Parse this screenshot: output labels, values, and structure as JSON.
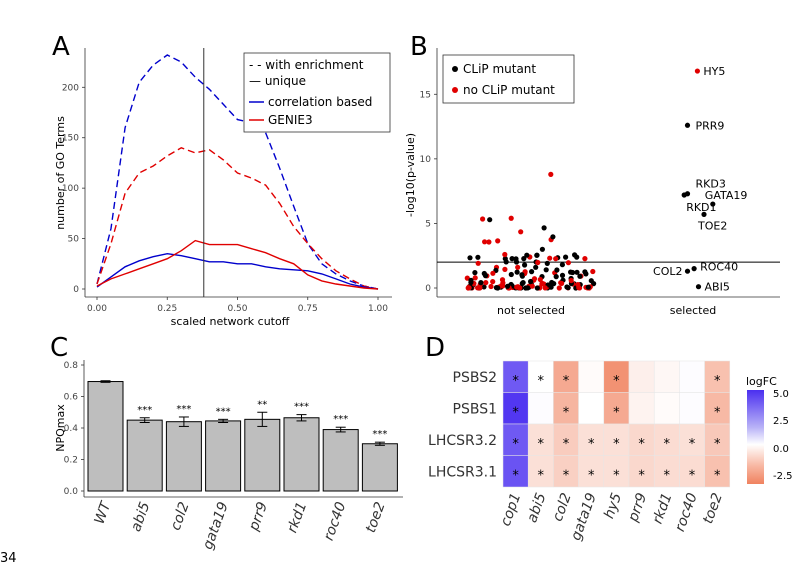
{
  "page_footer": "34",
  "chart_data": [
    {
      "panel": "A",
      "type": "line",
      "xlabel": "scaled network cutoff",
      "ylabel": "number of GO Terms",
      "xlim": [
        0,
        1
      ],
      "ylim": [
        0,
        235
      ],
      "xticks": [
        "0.00",
        "0.25",
        "0.50",
        "0.75",
        "1.00"
      ],
      "yticks": [
        "0",
        "50",
        "100",
        "150",
        "200"
      ],
      "vline_x": 0.38,
      "legend": {
        "with_enrichment": "- - with enrichment",
        "unique": "— unique",
        "correlation": "correlation based",
        "genie": "GENIE3"
      },
      "series": [
        {
          "name": "correlation based, with enrichment",
          "color": "#0000cc",
          "style": "dashed",
          "x": [
            0.0,
            0.05,
            0.1,
            0.15,
            0.2,
            0.25,
            0.3,
            0.35,
            0.4,
            0.45,
            0.5,
            0.55,
            0.6,
            0.65,
            0.7,
            0.75,
            0.8,
            0.85,
            0.9,
            0.95,
            1.0
          ],
          "y": [
            5,
            60,
            160,
            205,
            222,
            232,
            225,
            210,
            198,
            183,
            168,
            165,
            155,
            120,
            82,
            45,
            25,
            15,
            8,
            3,
            0
          ]
        },
        {
          "name": "GENIE3, with enrichment",
          "color": "#e00000",
          "style": "dashed",
          "x": [
            0.0,
            0.05,
            0.1,
            0.15,
            0.2,
            0.25,
            0.3,
            0.35,
            0.4,
            0.45,
            0.5,
            0.55,
            0.6,
            0.65,
            0.7,
            0.75,
            0.8,
            0.85,
            0.9,
            0.95,
            1.0
          ],
          "y": [
            5,
            45,
            95,
            115,
            122,
            132,
            140,
            135,
            138,
            128,
            115,
            110,
            103,
            85,
            62,
            45,
            30,
            18,
            10,
            3,
            0
          ]
        },
        {
          "name": "correlation based, unique",
          "color": "#0000cc",
          "style": "solid",
          "x": [
            0.0,
            0.05,
            0.1,
            0.15,
            0.2,
            0.25,
            0.3,
            0.35,
            0.4,
            0.45,
            0.5,
            0.55,
            0.6,
            0.65,
            0.7,
            0.75,
            0.8,
            0.85,
            0.9,
            0.95,
            1.0
          ],
          "y": [
            2,
            12,
            22,
            28,
            32,
            35,
            33,
            30,
            27,
            27,
            25,
            25,
            22,
            20,
            19,
            18,
            15,
            10,
            5,
            2,
            0
          ]
        },
        {
          "name": "GENIE3, unique",
          "color": "#e00000",
          "style": "solid",
          "x": [
            0.0,
            0.05,
            0.1,
            0.15,
            0.2,
            0.25,
            0.3,
            0.35,
            0.4,
            0.45,
            0.5,
            0.55,
            0.6,
            0.65,
            0.7,
            0.75,
            0.8,
            0.85,
            0.9,
            0.95,
            1.0
          ],
          "y": [
            3,
            10,
            15,
            20,
            25,
            30,
            38,
            48,
            44,
            44,
            44,
            40,
            36,
            30,
            25,
            14,
            8,
            5,
            3,
            1,
            0
          ]
        }
      ]
    },
    {
      "panel": "B",
      "type": "scatter",
      "ylabel": "-log10(p-value)",
      "categories": [
        "not selected",
        "selected"
      ],
      "ylim": [
        0,
        17.5
      ],
      "yticks": [
        "0",
        "5",
        "10",
        "15"
      ],
      "hline_y": 2,
      "legend": {
        "clip": "CLiP mutant",
        "noclip": "no CLiP mutant"
      },
      "labeled_points": [
        {
          "label": "HY5",
          "x": 0.08,
          "y": 16.8,
          "clip": false
        },
        {
          "label": "PRR9",
          "x": -0.1,
          "y": 12.6,
          "clip": true
        },
        {
          "label": "RKD3",
          "x": -0.1,
          "y": 7.3,
          "clip": true
        },
        {
          "label": "RKD1",
          "x": -0.16,
          "y": 7.2,
          "clip": true
        },
        {
          "label": "GATA19",
          "x": 0.36,
          "y": 6.5,
          "clip": true
        },
        {
          "label": "TOE2",
          "x": 0.2,
          "y": 5.7,
          "clip": true
        },
        {
          "label": "ROC40",
          "x": 0.02,
          "y": 1.5,
          "clip": true
        },
        {
          "label": "COL2",
          "x": -0.1,
          "y": 1.3,
          "clip": true
        },
        {
          "label": "ABI5",
          "x": 0.1,
          "y": 0.1,
          "clip": true
        }
      ]
    },
    {
      "panel": "C",
      "type": "bar",
      "ylabel": "NPQmax",
      "ylim": [
        0,
        0.8
      ],
      "yticks": [
        "0.0",
        "0.2",
        "0.4",
        "0.6",
        "0.8"
      ],
      "categories": [
        "WT",
        "abi5",
        "col2",
        "gata19",
        "prr9",
        "rkd1",
        "roc40",
        "toe2"
      ],
      "values": [
        0.695,
        0.45,
        0.44,
        0.445,
        0.455,
        0.465,
        0.39,
        0.3
      ],
      "errors": [
        0.005,
        0.015,
        0.03,
        0.01,
        0.045,
        0.02,
        0.015,
        0.01
      ],
      "significance": [
        "",
        "***",
        "***",
        "***",
        "**",
        "***",
        "***",
        "***"
      ]
    },
    {
      "panel": "D",
      "type": "heatmap",
      "rows": [
        "PSBS2",
        "PSBS1",
        "LHCSR3.2",
        "LHCSR3.1"
      ],
      "cols": [
        "cop1",
        "abi5",
        "col2",
        "gata19",
        "hy5",
        "prr9",
        "rkd1",
        "roc40",
        "toe2"
      ],
      "legend_title": "logFC",
      "legend_ticks": [
        "5.0",
        "2.5",
        "0.0",
        "-2.5"
      ],
      "values": [
        [
          6.0,
          0.0,
          -2.2,
          -0.1,
          -2.8,
          -0.4,
          -0.2,
          0.1,
          -1.6
        ],
        [
          7.2,
          0.1,
          -1.9,
          0.0,
          -2.2,
          -0.3,
          -0.1,
          0.1,
          -1.8
        ],
        [
          6.0,
          -0.8,
          -1.3,
          -0.8,
          -0.8,
          -1.0,
          -0.9,
          -0.8,
          -1.4
        ],
        [
          6.2,
          -0.8,
          -1.2,
          -0.8,
          -0.8,
          -1.0,
          -0.9,
          -0.9,
          -1.6
        ]
      ],
      "stars": [
        [
          true,
          true,
          true,
          false,
          true,
          false,
          false,
          false,
          true
        ],
        [
          true,
          false,
          true,
          false,
          true,
          false,
          false,
          false,
          true
        ],
        [
          true,
          true,
          true,
          true,
          true,
          true,
          true,
          true,
          true
        ],
        [
          true,
          true,
          true,
          true,
          true,
          true,
          true,
          true,
          true
        ]
      ],
      "star_symbol": "*"
    }
  ]
}
